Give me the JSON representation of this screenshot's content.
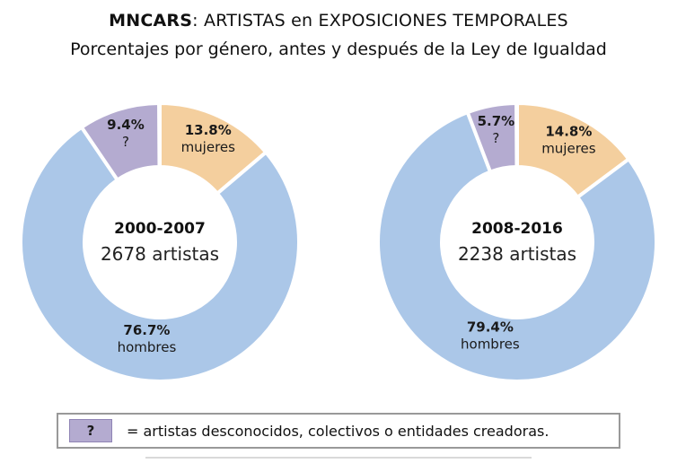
{
  "header": {
    "title_bold": "MNCARS",
    "title_rest": ": ARTISTAS en EXPOSICIONES TEMPORALES",
    "subtitle": "Porcentajes por género, antes y después de la Ley de Igualdad"
  },
  "colors": {
    "mujeres": "#f4cf9e",
    "hombres": "#abc7e8",
    "desconocidos": "#b4abd0"
  },
  "chart_data": [
    {
      "type": "pie",
      "center_title": "2000-2007",
      "center_subtitle": "2678 artistas",
      "total_artists": 2678,
      "slices": [
        {
          "key": "mujeres",
          "label": "mujeres",
          "value": 13.8
        },
        {
          "key": "hombres",
          "label": "hombres",
          "value": 76.7
        },
        {
          "key": "desconocidos",
          "label": "?",
          "value": 9.4
        }
      ]
    },
    {
      "type": "pie",
      "center_title": "2008-2016",
      "center_subtitle": "2238 artistas",
      "total_artists": 2238,
      "slices": [
        {
          "key": "mujeres",
          "label": "mujeres",
          "value": 14.8
        },
        {
          "key": "hombres",
          "label": "hombres",
          "value": 79.4
        },
        {
          "key": "desconocidos",
          "label": "?",
          "value": 5.7
        }
      ]
    }
  ],
  "legend": {
    "symbol": "?",
    "text": "= artistas desconocidos, colectivos o entidades creadoras."
  }
}
